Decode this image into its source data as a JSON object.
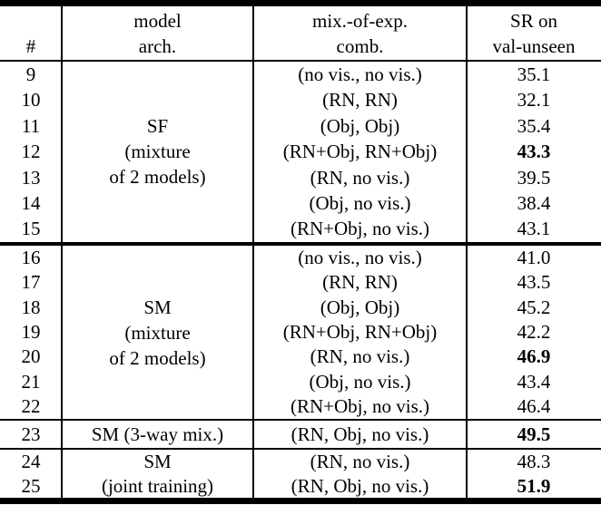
{
  "colors": {
    "text": "#000000",
    "background": "#ffffff",
    "rule": "#000000"
  },
  "header": {
    "num": "#",
    "model": [
      "model",
      "arch."
    ],
    "mix": [
      "mix.-of-exp.",
      "comb."
    ],
    "sr": [
      "SR on",
      "val-unseen"
    ]
  },
  "sections": {
    "sf": {
      "arch": [
        "SF",
        "(mixture",
        "of 2 models)"
      ],
      "rows": [
        {
          "num": "9",
          "mix": "(no vis., no vis.)",
          "sr": "35.1",
          "bold": false
        },
        {
          "num": "10",
          "mix": "(RN, RN)",
          "sr": "32.1",
          "bold": false
        },
        {
          "num": "11",
          "mix": "(Obj, Obj)",
          "sr": "35.4",
          "bold": false
        },
        {
          "num": "12",
          "mix": "(RN+Obj, RN+Obj)",
          "sr": "43.3",
          "bold": true
        },
        {
          "num": "13",
          "mix": "(RN, no vis.)",
          "sr": "39.5",
          "bold": false
        },
        {
          "num": "14",
          "mix": "(Obj, no vis.)",
          "sr": "38.4",
          "bold": false
        },
        {
          "num": "15",
          "mix": "(RN+Obj, no vis.)",
          "sr": "43.1",
          "bold": false
        }
      ]
    },
    "sm": {
      "arch": [
        "SM",
        "(mixture",
        "of 2 models)"
      ],
      "rows": [
        {
          "num": "16",
          "mix": "(no vis., no vis.)",
          "sr": "41.0",
          "bold": false
        },
        {
          "num": "17",
          "mix": "(RN, RN)",
          "sr": "43.5",
          "bold": false
        },
        {
          "num": "18",
          "mix": "(Obj, Obj)",
          "sr": "45.2",
          "bold": false
        },
        {
          "num": "19",
          "mix": "(RN+Obj, RN+Obj)",
          "sr": "42.2",
          "bold": false
        },
        {
          "num": "20",
          "mix": "(RN, no vis.)",
          "sr": "46.9",
          "bold": true
        },
        {
          "num": "21",
          "mix": "(Obj, no vis.)",
          "sr": "43.4",
          "bold": false
        },
        {
          "num": "22",
          "mix": "(RN+Obj, no vis.)",
          "sr": "46.4",
          "bold": false
        }
      ]
    },
    "threeway": {
      "row": {
        "num": "23",
        "arch": "SM (3-way mix.)",
        "mix": "(RN, Obj, no vis.)",
        "sr": "49.5",
        "bold": true
      }
    },
    "joint": {
      "rows": [
        {
          "num": "24",
          "arch": "SM",
          "mix": "(RN, no vis.)",
          "sr": "48.3",
          "bold": false
        },
        {
          "num": "25",
          "arch": "(joint training)",
          "mix": "(RN, Obj, no vis.)",
          "sr": "51.9",
          "bold": true
        }
      ]
    }
  }
}
